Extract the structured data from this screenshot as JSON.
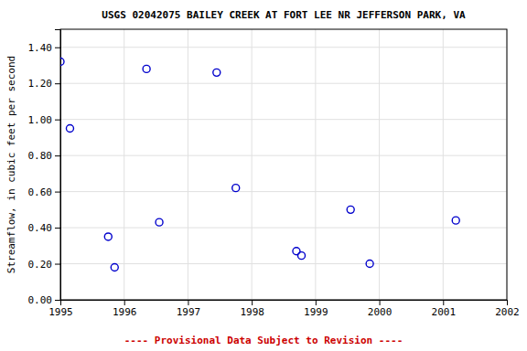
{
  "chart_data": {
    "type": "scatter",
    "title": "USGS 02042075 BAILEY CREEK AT FORT LEE NR JEFFERSON PARK, VA",
    "ylabel": "Streamflow, in cubic feet per second",
    "x": [
      1995,
      1995.15,
      1995.75,
      1995.85,
      1996.35,
      1996.55,
      1997.45,
      1997.75,
      1998.7,
      1998.78,
      1999.55,
      1999.85,
      2001.2
    ],
    "values": [
      1.32,
      0.95,
      0.35,
      0.18,
      1.28,
      0.43,
      1.26,
      0.62,
      0.27,
      0.245,
      0.5,
      0.2,
      0.44
    ],
    "color": "#0000cc",
    "marker": "circle",
    "xlim": [
      1995,
      2002
    ],
    "ylim": [
      0,
      1.5
    ],
    "xticks": [
      1995,
      1996,
      1997,
      1998,
      1999,
      2000,
      2001,
      2002
    ],
    "yticks": [
      {
        "value": 0,
        "label": "0.00"
      },
      {
        "value": 0.2,
        "label": "0.20"
      },
      {
        "value": 0.4,
        "label": "0.40"
      },
      {
        "value": 0.6,
        "label": "0.60"
      },
      {
        "value": 0.8,
        "label": "0.80"
      },
      {
        "value": 1.0,
        "label": "1.00"
      },
      {
        "value": 1.2,
        "label": "1.20"
      },
      {
        "value": 1.4,
        "label": "1.40"
      }
    ],
    "grid": true,
    "annotations": [
      {
        "text": "---- Provisional Data Subject to Revision ----",
        "color": "#cc0000"
      }
    ]
  }
}
